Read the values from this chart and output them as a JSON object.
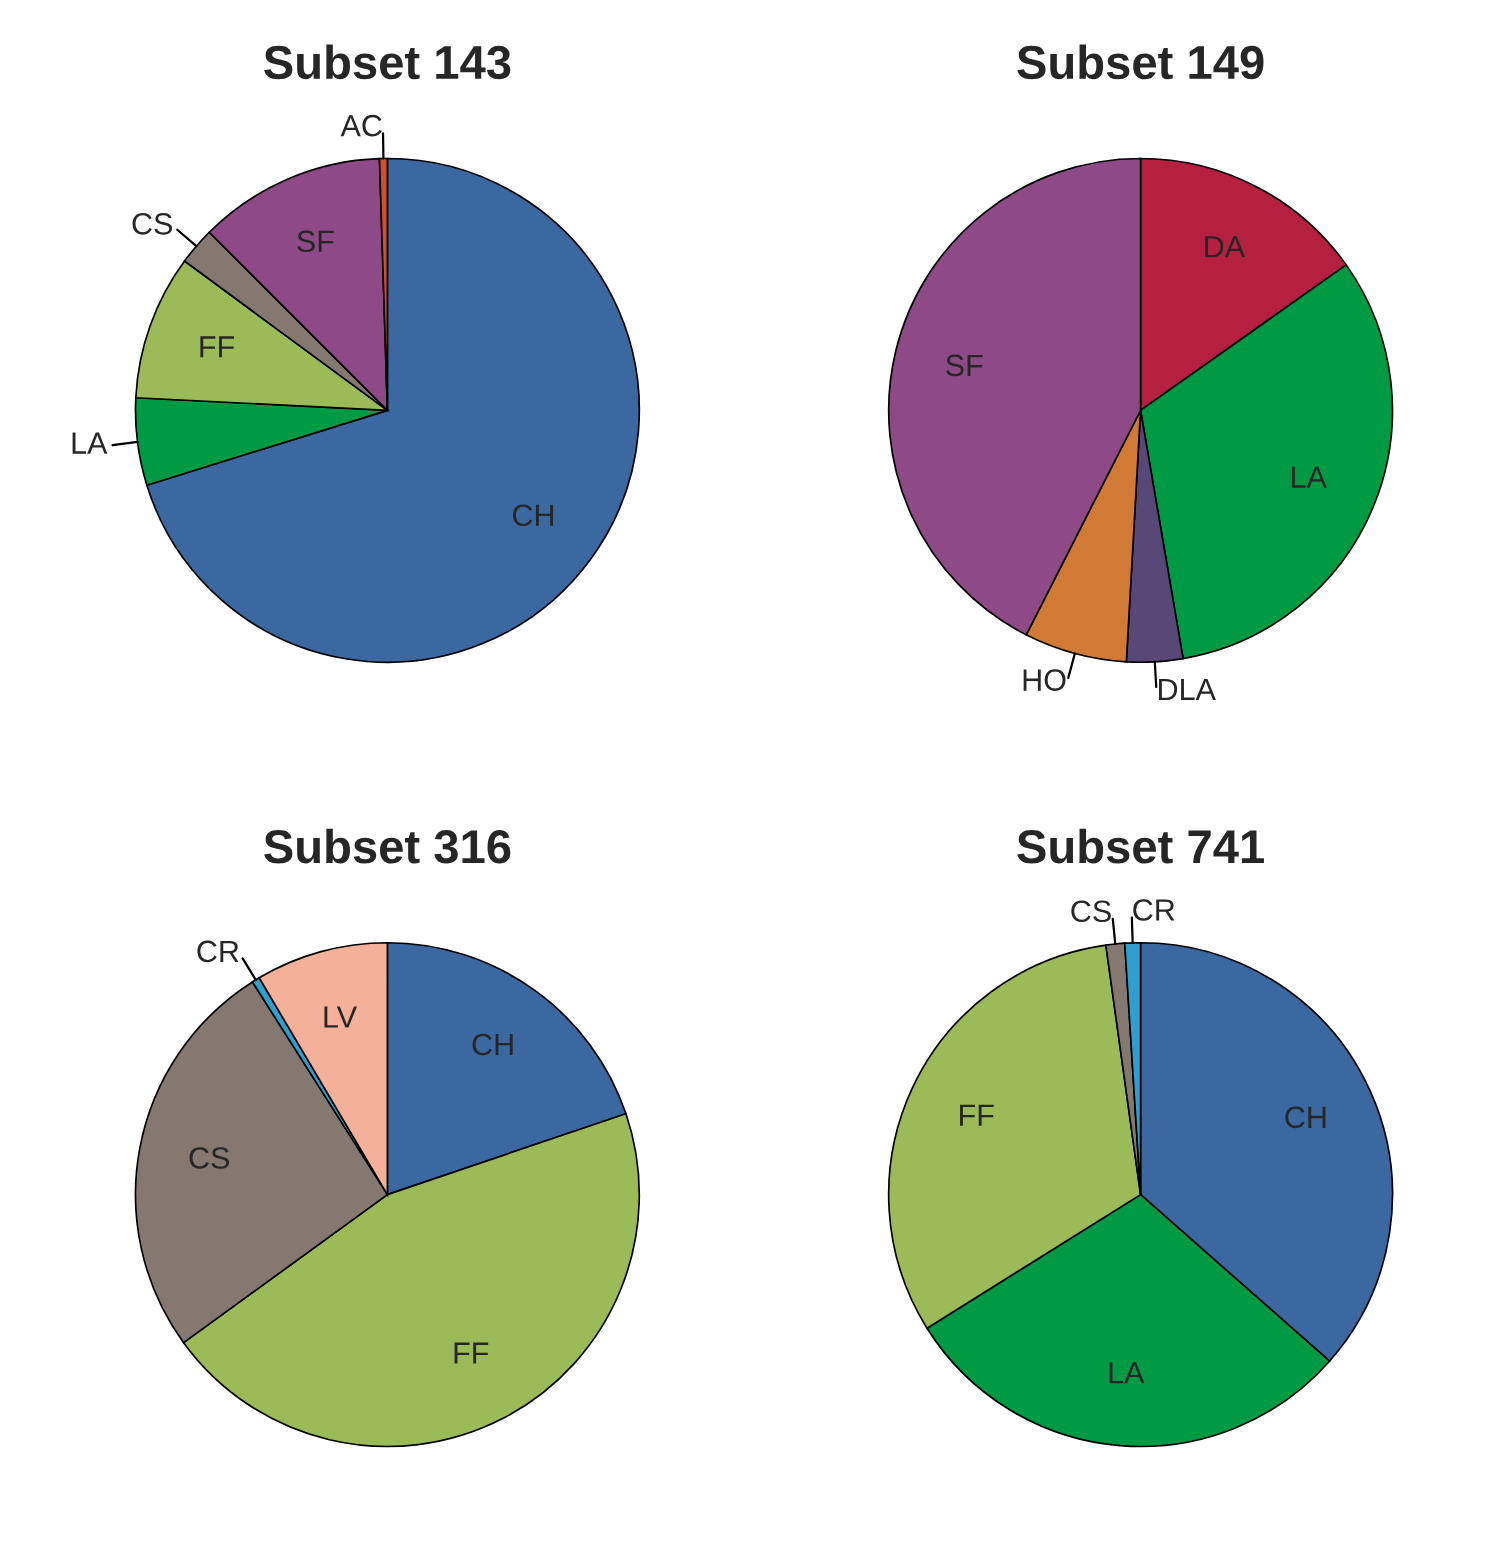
{
  "chart_data": [
    {
      "type": "pie",
      "title": "Subset 143",
      "categories": [
        "CH",
        "LA",
        "FF",
        "CS",
        "SF",
        "AC"
      ],
      "values": [
        70.2,
        5.6,
        9.3,
        2.4,
        12,
        0.5
      ],
      "colors": [
        "#3b68a0",
        "#009a44",
        "#9bbb59",
        "#857870",
        "#8e4a87",
        "#d0502a"
      ]
    },
    {
      "type": "pie",
      "title": "Subset 149",
      "categories": [
        "DA",
        "LA",
        "DLA",
        "HO",
        "SF"
      ],
      "values": [
        15.2,
        32.1,
        3.6,
        6.6,
        42.5
      ],
      "colors": [
        "#b52040",
        "#009a44",
        "#574878",
        "#d07a35",
        "#8e4a87"
      ]
    },
    {
      "type": "pie",
      "title": "Subset 316",
      "categories": [
        "CH",
        "FF",
        "CS",
        "CR",
        "LV"
      ],
      "values": [
        19.8,
        45.2,
        26,
        0.5,
        8.5
      ],
      "colors": [
        "#3b68a0",
        "#9bbb59",
        "#857870",
        "#2f9fd0",
        "#f4b098"
      ]
    },
    {
      "type": "pie",
      "title": "Subset 741",
      "categories": [
        "CH",
        "LA",
        "FF",
        "CS",
        "CR"
      ],
      "values": [
        36.5,
        29.6,
        31.7,
        1.2,
        1.0
      ],
      "colors": [
        "#3b68a0",
        "#009a44",
        "#9bbb59",
        "#857870",
        "#2f9fd0"
      ]
    }
  ]
}
